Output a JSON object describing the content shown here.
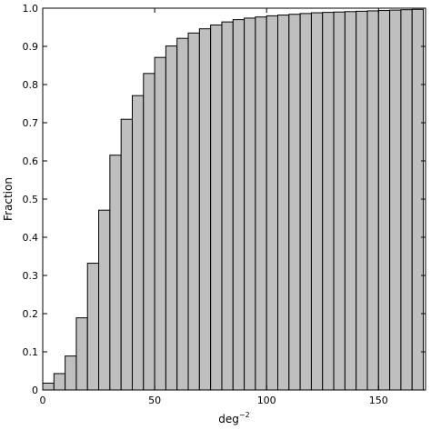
{
  "chart_data": {
    "type": "bar",
    "title": "",
    "xlabel": "deg",
    "xlabel_exponent": "−2",
    "ylabel": "Fraction",
    "xlim": [
      0,
      171
    ],
    "ylim": [
      0,
      1.0
    ],
    "bin_width": 5,
    "x_ticks": [
      0,
      50,
      100,
      150
    ],
    "y_ticks": [
      0,
      0.1,
      0.2,
      0.3,
      0.4,
      0.5,
      0.6,
      0.7,
      0.8,
      0.9,
      1.0
    ],
    "y_tick_labels": [
      "0",
      "0.1",
      "0.2",
      "0.3",
      "0.4",
      "0.5",
      "0.6",
      "0.7",
      "0.8",
      "0.9",
      "1.0"
    ],
    "grid": false,
    "legend": "none",
    "bar_color": "#bfbfbf",
    "edge_color": "#000000",
    "bins": [
      {
        "x": 0,
        "value": 0.018
      },
      {
        "x": 5,
        "value": 0.043
      },
      {
        "x": 10,
        "value": 0.089
      },
      {
        "x": 15,
        "value": 0.189
      },
      {
        "x": 20,
        "value": 0.332
      },
      {
        "x": 25,
        "value": 0.471
      },
      {
        "x": 30,
        "value": 0.615
      },
      {
        "x": 35,
        "value": 0.709
      },
      {
        "x": 40,
        "value": 0.771
      },
      {
        "x": 45,
        "value": 0.829
      },
      {
        "x": 50,
        "value": 0.871
      },
      {
        "x": 55,
        "value": 0.901
      },
      {
        "x": 60,
        "value": 0.921
      },
      {
        "x": 65,
        "value": 0.935
      },
      {
        "x": 70,
        "value": 0.946
      },
      {
        "x": 75,
        "value": 0.956
      },
      {
        "x": 80,
        "value": 0.964
      },
      {
        "x": 85,
        "value": 0.97
      },
      {
        "x": 90,
        "value": 0.974
      },
      {
        "x": 95,
        "value": 0.977
      },
      {
        "x": 100,
        "value": 0.98
      },
      {
        "x": 105,
        "value": 0.982
      },
      {
        "x": 110,
        "value": 0.984
      },
      {
        "x": 115,
        "value": 0.986
      },
      {
        "x": 120,
        "value": 0.988
      },
      {
        "x": 125,
        "value": 0.989
      },
      {
        "x": 130,
        "value": 0.99
      },
      {
        "x": 135,
        "value": 0.991
      },
      {
        "x": 140,
        "value": 0.992
      },
      {
        "x": 145,
        "value": 0.993
      },
      {
        "x": 150,
        "value": 0.994
      },
      {
        "x": 155,
        "value": 0.995
      },
      {
        "x": 160,
        "value": 0.996
      },
      {
        "x": 165,
        "value": 0.997
      }
    ]
  }
}
